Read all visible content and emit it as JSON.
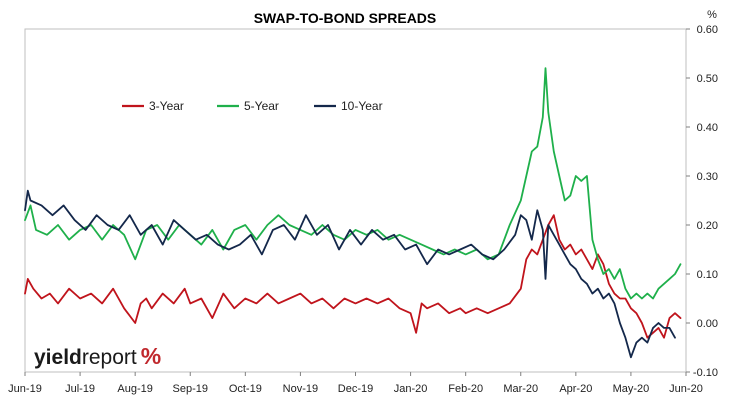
{
  "chart_data": {
    "type": "line",
    "title": "SWAP-TO-BOND SPREADS",
    "unit": "%",
    "x_tick_labels": [
      "Jun-19",
      "Jul-19",
      "Aug-19",
      "Sep-19",
      "Oct-19",
      "Nov-19",
      "Dec-19",
      "Jan-20",
      "Feb-20",
      "Mar-20",
      "Apr-20",
      "May-20",
      "Jun-20"
    ],
    "y_tick_labels": [
      "0.60",
      "0.50",
      "0.40",
      "0.30",
      "0.20",
      "0.10",
      "0.00",
      "-0.10"
    ],
    "ylim": [
      -0.1,
      0.6
    ],
    "grid": false,
    "legend_position": "upper-left",
    "series": [
      {
        "name": "3-Year",
        "color": "#c0141c",
        "x_months": [
          0,
          0.05,
          0.15,
          0.3,
          0.45,
          0.6,
          0.8,
          1,
          1.2,
          1.4,
          1.6,
          1.8,
          2,
          2.1,
          2.2,
          2.3,
          2.5,
          2.7,
          2.9,
          3,
          3.2,
          3.4,
          3.6,
          3.8,
          4,
          4.2,
          4.4,
          4.6,
          4.8,
          5,
          5.2,
          5.4,
          5.6,
          5.8,
          6,
          6.2,
          6.4,
          6.6,
          6.8,
          7,
          7.1,
          7.2,
          7.3,
          7.5,
          7.7,
          7.9,
          8,
          8.2,
          8.4,
          8.6,
          8.8,
          9,
          9.1,
          9.2,
          9.3,
          9.4,
          9.5,
          9.6,
          9.7,
          9.8,
          9.9,
          10,
          10.1,
          10.2,
          10.3,
          10.4,
          10.5,
          10.6,
          10.7,
          10.8,
          10.9,
          11,
          11.1,
          11.2,
          11.3,
          11.4,
          11.5,
          11.6,
          11.7,
          11.8,
          11.9
        ],
        "values": [
          0.06,
          0.09,
          0.07,
          0.05,
          0.06,
          0.04,
          0.07,
          0.05,
          0.06,
          0.04,
          0.07,
          0.03,
          0.0,
          0.04,
          0.05,
          0.03,
          0.06,
          0.04,
          0.07,
          0.04,
          0.05,
          0.01,
          0.06,
          0.03,
          0.05,
          0.04,
          0.06,
          0.04,
          0.05,
          0.06,
          0.04,
          0.05,
          0.03,
          0.05,
          0.04,
          0.05,
          0.04,
          0.05,
          0.03,
          0.02,
          -0.02,
          0.04,
          0.03,
          0.04,
          0.02,
          0.03,
          0.02,
          0.03,
          0.02,
          0.03,
          0.04,
          0.07,
          0.13,
          0.15,
          0.14,
          0.17,
          0.2,
          0.22,
          0.17,
          0.15,
          0.16,
          0.14,
          0.15,
          0.13,
          0.11,
          0.14,
          0.12,
          0.08,
          0.06,
          0.05,
          0.05,
          0.03,
          0.02,
          0.0,
          -0.03,
          -0.02,
          -0.01,
          -0.03,
          0.01,
          0.02,
          0.01
        ]
      },
      {
        "name": "5-Year",
        "color": "#1fb04b",
        "x_months": [
          0,
          0.1,
          0.2,
          0.4,
          0.6,
          0.8,
          1,
          1.2,
          1.4,
          1.6,
          1.8,
          2,
          2.2,
          2.4,
          2.6,
          2.8,
          3,
          3.2,
          3.4,
          3.6,
          3.8,
          4,
          4.2,
          4.4,
          4.6,
          4.8,
          5,
          5.2,
          5.4,
          5.6,
          5.8,
          6,
          6.2,
          6.4,
          6.6,
          6.8,
          7,
          7.2,
          7.4,
          7.6,
          7.8,
          8,
          8.2,
          8.4,
          8.6,
          8.8,
          9,
          9.1,
          9.2,
          9.3,
          9.4,
          9.45,
          9.5,
          9.6,
          9.7,
          9.8,
          9.9,
          10,
          10.1,
          10.2,
          10.3,
          10.4,
          10.5,
          10.6,
          10.7,
          10.8,
          10.9,
          11,
          11.1,
          11.2,
          11.3,
          11.4,
          11.5,
          11.6,
          11.7,
          11.8,
          11.9
        ],
        "values": [
          0.21,
          0.24,
          0.19,
          0.18,
          0.2,
          0.17,
          0.19,
          0.2,
          0.17,
          0.2,
          0.18,
          0.13,
          0.19,
          0.2,
          0.17,
          0.2,
          0.18,
          0.16,
          0.19,
          0.15,
          0.19,
          0.2,
          0.17,
          0.2,
          0.22,
          0.2,
          0.19,
          0.18,
          0.2,
          0.18,
          0.17,
          0.19,
          0.18,
          0.19,
          0.17,
          0.18,
          0.17,
          0.16,
          0.15,
          0.14,
          0.15,
          0.14,
          0.15,
          0.13,
          0.14,
          0.2,
          0.25,
          0.3,
          0.35,
          0.36,
          0.42,
          0.52,
          0.43,
          0.35,
          0.3,
          0.25,
          0.26,
          0.3,
          0.29,
          0.3,
          0.17,
          0.13,
          0.1,
          0.11,
          0.09,
          0.11,
          0.07,
          0.05,
          0.06,
          0.05,
          0.06,
          0.05,
          0.07,
          0.08,
          0.09,
          0.1,
          0.12
        ]
      },
      {
        "name": "10-Year",
        "color": "#14284b",
        "x_months": [
          0,
          0.05,
          0.1,
          0.3,
          0.5,
          0.7,
          0.9,
          1.1,
          1.3,
          1.5,
          1.7,
          1.9,
          2.1,
          2.3,
          2.5,
          2.7,
          2.9,
          3.1,
          3.3,
          3.5,
          3.7,
          3.9,
          4.1,
          4.3,
          4.5,
          4.7,
          4.9,
          5.1,
          5.3,
          5.5,
          5.7,
          5.9,
          6.1,
          6.3,
          6.5,
          6.7,
          6.9,
          7.1,
          7.3,
          7.5,
          7.7,
          7.9,
          8.1,
          8.3,
          8.5,
          8.7,
          8.9,
          9,
          9.1,
          9.2,
          9.3,
          9.4,
          9.45,
          9.5,
          9.6,
          9.7,
          9.8,
          9.9,
          10,
          10.1,
          10.2,
          10.3,
          10.4,
          10.5,
          10.6,
          10.7,
          10.8,
          10.9,
          11,
          11.1,
          11.2,
          11.3,
          11.4,
          11.5,
          11.6,
          11.7,
          11.8
        ],
        "values": [
          0.23,
          0.27,
          0.25,
          0.24,
          0.22,
          0.24,
          0.21,
          0.19,
          0.22,
          0.2,
          0.19,
          0.22,
          0.18,
          0.2,
          0.16,
          0.21,
          0.19,
          0.17,
          0.18,
          0.16,
          0.15,
          0.16,
          0.18,
          0.14,
          0.19,
          0.2,
          0.17,
          0.22,
          0.18,
          0.2,
          0.15,
          0.19,
          0.16,
          0.19,
          0.17,
          0.18,
          0.15,
          0.16,
          0.12,
          0.15,
          0.14,
          0.15,
          0.16,
          0.14,
          0.13,
          0.15,
          0.18,
          0.22,
          0.21,
          0.17,
          0.23,
          0.19,
          0.09,
          0.2,
          0.18,
          0.16,
          0.14,
          0.12,
          0.11,
          0.09,
          0.08,
          0.06,
          0.07,
          0.05,
          0.06,
          0.04,
          0.0,
          -0.03,
          -0.07,
          -0.04,
          -0.03,
          -0.04,
          -0.01,
          0.0,
          -0.01,
          -0.01,
          -0.03
        ]
      }
    ]
  },
  "logo": {
    "part1": "yield",
    "part2": "report",
    "part3": "%"
  }
}
